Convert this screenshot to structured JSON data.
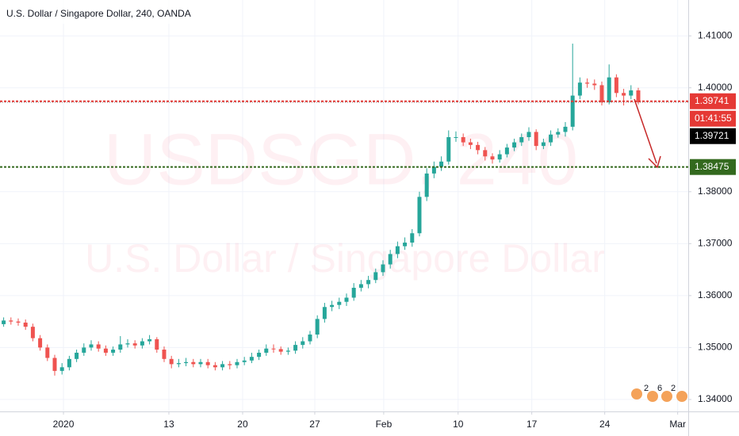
{
  "chart_data": {
    "type": "candlestick",
    "title": "U.S. Dollar / Singapore Dollar, 240, OANDA",
    "watermark": [
      "USDSGD, 240",
      "U.S. Dollar / Singapore Dollar"
    ],
    "open": [
      1.3545,
      1.3552,
      1.355,
      1.3548,
      1.354,
      1.3518,
      1.35,
      1.348,
      1.3455,
      1.3462,
      1.3478,
      1.349,
      1.35,
      1.3506,
      1.3498,
      1.349,
      1.3496,
      1.3506,
      1.3508,
      1.3504,
      1.3512,
      1.3516,
      1.3496,
      1.3478,
      1.3468,
      1.347,
      1.3472,
      1.3468,
      1.3472,
      1.3466,
      1.3462,
      1.3468,
      1.3466,
      1.3472,
      1.3475,
      1.3482,
      1.349,
      1.3498,
      1.3497,
      1.3492,
      1.3494,
      1.3505,
      1.3512,
      1.3525,
      1.3555,
      1.3578,
      1.3582,
      1.3588,
      1.3596,
      1.3615,
      1.3622,
      1.363,
      1.3645,
      1.366,
      1.368,
      1.3695,
      1.3702,
      1.372,
      1.379,
      1.3835,
      1.3848,
      1.3858,
      1.3905,
      1.3905,
      1.3895,
      1.389,
      1.388,
      1.3868,
      1.3862,
      1.3872,
      1.3885,
      1.3895,
      1.3905,
      1.3915,
      1.3888,
      1.3895,
      1.391,
      1.3915,
      1.3925,
      1.3985,
      1.401,
      1.4008,
      1.4005,
      1.3972,
      1.402,
      1.399,
      1.3985,
      1.3995
    ],
    "high": [
      1.3558,
      1.3558,
      1.3556,
      1.3554,
      1.3546,
      1.3524,
      1.3506,
      1.3486,
      1.347,
      1.3484,
      1.3496,
      1.3508,
      1.3514,
      1.3512,
      1.3504,
      1.3502,
      1.3522,
      1.3516,
      1.3514,
      1.3518,
      1.3524,
      1.352,
      1.3502,
      1.3484,
      1.3478,
      1.348,
      1.3478,
      1.3478,
      1.3478,
      1.3472,
      1.3474,
      1.3474,
      1.3478,
      1.3482,
      1.349,
      1.3496,
      1.3506,
      1.3506,
      1.3502,
      1.35,
      1.3512,
      1.352,
      1.3532,
      1.3562,
      1.3586,
      1.359,
      1.3596,
      1.3604,
      1.3624,
      1.363,
      1.3638,
      1.3652,
      1.3668,
      1.3688,
      1.3704,
      1.3712,
      1.3728,
      1.38,
      1.3845,
      1.3858,
      1.3868,
      1.3918,
      1.3916,
      1.3912,
      1.3902,
      1.3896,
      1.3886,
      1.3874,
      1.388,
      1.3892,
      1.3902,
      1.3912,
      1.3924,
      1.392,
      1.3902,
      1.3918,
      1.3922,
      1.3934,
      1.4085,
      1.402,
      1.4018,
      1.4016,
      1.4012,
      1.4045,
      1.4026,
      1.3998,
      1.4005,
      1.4
    ],
    "low": [
      1.354,
      1.3544,
      1.3542,
      1.3534,
      1.3512,
      1.3494,
      1.3474,
      1.3446,
      1.3448,
      1.3456,
      1.3472,
      1.3484,
      1.3494,
      1.3492,
      1.3484,
      1.3484,
      1.349,
      1.35,
      1.3498,
      1.3498,
      1.3506,
      1.349,
      1.3472,
      1.346,
      1.3462,
      1.3464,
      1.3462,
      1.3462,
      1.346,
      1.3456,
      1.3456,
      1.3458,
      1.346,
      1.3466,
      1.347,
      1.3476,
      1.3484,
      1.349,
      1.3486,
      1.3486,
      1.3488,
      1.3498,
      1.3506,
      1.3518,
      1.3548,
      1.357,
      1.3574,
      1.358,
      1.359,
      1.3608,
      1.3614,
      1.3624,
      1.3638,
      1.3652,
      1.3672,
      1.3688,
      1.3694,
      1.3714,
      1.3782,
      1.3826,
      1.384,
      1.3852,
      1.3896,
      1.3888,
      1.3882,
      1.3872,
      1.386,
      1.3854,
      1.3856,
      1.3866,
      1.3878,
      1.3888,
      1.3898,
      1.388,
      1.3882,
      1.3888,
      1.3904,
      1.3906,
      1.3918,
      1.3978,
      1.4,
      1.3996,
      1.3966,
      1.3968,
      1.3982,
      1.3966,
      1.3978,
      1.3968
    ],
    "close": [
      1.3552,
      1.355,
      1.3548,
      1.354,
      1.3518,
      1.35,
      1.348,
      1.3455,
      1.3462,
      1.3478,
      1.349,
      1.35,
      1.3506,
      1.3498,
      1.349,
      1.3496,
      1.3506,
      1.3508,
      1.3504,
      1.3512,
      1.3516,
      1.3496,
      1.3478,
      1.3468,
      1.347,
      1.3472,
      1.3468,
      1.3472,
      1.3466,
      1.3462,
      1.3468,
      1.3466,
      1.3472,
      1.3475,
      1.3482,
      1.349,
      1.3498,
      1.3497,
      1.3492,
      1.3494,
      1.3505,
      1.3512,
      1.3525,
      1.3555,
      1.3578,
      1.3582,
      1.3588,
      1.3596,
      1.3615,
      1.3622,
      1.363,
      1.3645,
      1.366,
      1.368,
      1.3695,
      1.3702,
      1.372,
      1.379,
      1.3835,
      1.3848,
      1.3858,
      1.3905,
      1.3905,
      1.3895,
      1.389,
      1.388,
      1.3868,
      1.3862,
      1.3872,
      1.3885,
      1.3895,
      1.3905,
      1.3915,
      1.3888,
      1.3895,
      1.391,
      1.3915,
      1.3925,
      1.3985,
      1.401,
      1.4008,
      1.4005,
      1.3972,
      1.402,
      1.399,
      1.3985,
      1.3995,
      1.39721
    ],
    "up_color": "#26a69a",
    "down_color": "#ef5350",
    "xlim": [
      -0.5,
      93.85
    ],
    "xticks": [
      {
        "value": 8.2,
        "label": "2020"
      },
      {
        "value": 22.65,
        "label": "13"
      },
      {
        "value": 32.76,
        "label": "20"
      },
      {
        "value": 42.65,
        "label": "27"
      },
      {
        "value": 52.1,
        "label": "Feb"
      },
      {
        "value": 62.3,
        "label": "10"
      },
      {
        "value": 72.4,
        "label": "17"
      },
      {
        "value": 82.4,
        "label": "24"
      },
      {
        "value": 92.4,
        "label": "Mar"
      }
    ],
    "ylim": [
      1.3377,
      1.4169
    ],
    "yticks": [
      {
        "value": 1.34,
        "label": "1.34000"
      },
      {
        "value": 1.35,
        "label": "1.35000"
      },
      {
        "value": 1.36,
        "label": "1.36000"
      },
      {
        "value": 1.37,
        "label": "1.37000"
      },
      {
        "value": 1.38,
        "label": "1.38000"
      },
      {
        "value": 1.4,
        "label": "1.40000"
      },
      {
        "value": 1.41,
        "label": "1.41000"
      }
    ],
    "grid": true,
    "hlines": [
      {
        "value": 1.39741,
        "color": "#e53935"
      },
      {
        "value": 1.38475,
        "color": "#33691e"
      }
    ],
    "current_price": 1.39721,
    "countdown": "01:41:55",
    "event_badges": [
      "2",
      "6",
      "2"
    ]
  }
}
